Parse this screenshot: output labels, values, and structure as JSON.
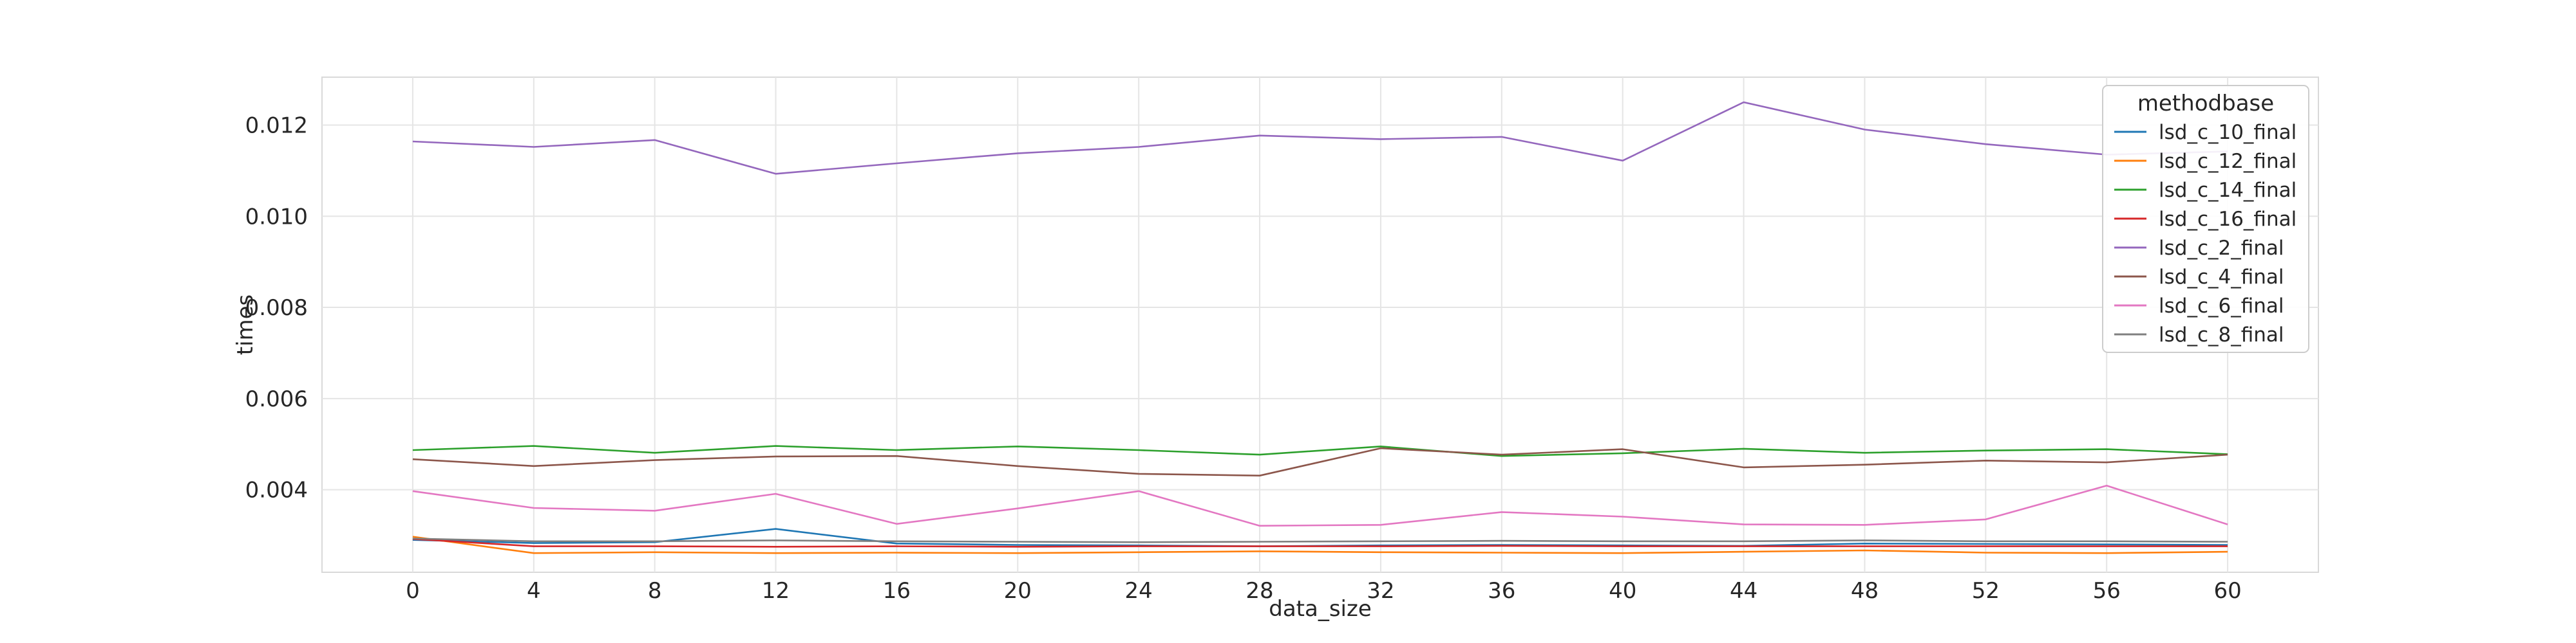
{
  "chart_data": {
    "type": "line",
    "title": "",
    "xlabel": "data_size",
    "ylabel": "times",
    "x": [
      0,
      4,
      8,
      12,
      16,
      20,
      24,
      28,
      32,
      36,
      40,
      44,
      48,
      52,
      56,
      60
    ],
    "x_tick_labels": [
      "0",
      "4",
      "8",
      "12",
      "16",
      "20",
      "24",
      "28",
      "32",
      "36",
      "40",
      "44",
      "48",
      "52",
      "56",
      "60"
    ],
    "xlim": [
      -3,
      63
    ],
    "y_ticks": [
      0.004,
      0.006,
      0.008,
      0.01,
      0.012
    ],
    "y_tick_labels": [
      "0.004",
      "0.006",
      "0.008",
      "0.010",
      "0.012"
    ],
    "ylim": [
      0.00219,
      0.01305
    ],
    "grid": true,
    "legend": {
      "title": "methodbase",
      "placement": "top-right"
    },
    "series": [
      {
        "name": "lsd_c_10_final",
        "color": "#1f77b4",
        "values": [
          0.0029,
          0.00283,
          0.00285,
          0.00314,
          0.00282,
          0.00279,
          0.00278,
          0.00276,
          0.00278,
          0.00279,
          0.00278,
          0.00277,
          0.00282,
          0.00281,
          0.0028,
          0.00279
        ]
      },
      {
        "name": "lsd_c_12_final",
        "color": "#ff7f0e",
        "values": [
          0.00297,
          0.00261,
          0.00263,
          0.00261,
          0.00262,
          0.00261,
          0.00263,
          0.00265,
          0.00263,
          0.00262,
          0.00261,
          0.00264,
          0.00267,
          0.00262,
          0.00261,
          0.00264
        ]
      },
      {
        "name": "lsd_c_14_final",
        "color": "#2ca02c",
        "values": [
          0.00487,
          0.00496,
          0.00481,
          0.00496,
          0.00487,
          0.00495,
          0.00487,
          0.00477,
          0.00495,
          0.00474,
          0.0048,
          0.0049,
          0.00481,
          0.00486,
          0.00489,
          0.00478
        ]
      },
      {
        "name": "lsd_c_16_final",
        "color": "#d62728",
        "values": [
          0.00292,
          0.00276,
          0.00276,
          0.00275,
          0.00276,
          0.00275,
          0.00276,
          0.00276,
          0.00276,
          0.00277,
          0.00276,
          0.00276,
          0.00276,
          0.00276,
          0.00276,
          0.00276
        ]
      },
      {
        "name": "lsd_c_2_final",
        "color": "#9467bd",
        "values": [
          0.01164,
          0.01152,
          0.01167,
          0.01093,
          0.01116,
          0.01138,
          0.01152,
          0.01177,
          0.01169,
          0.01174,
          0.01122,
          0.0125,
          0.0119,
          0.01158,
          0.01135,
          0.01142
        ]
      },
      {
        "name": "lsd_c_4_final",
        "color": "#8c564b",
        "values": [
          0.00467,
          0.00452,
          0.00465,
          0.00473,
          0.00474,
          0.00452,
          0.00435,
          0.00431,
          0.00491,
          0.00477,
          0.00489,
          0.00449,
          0.00455,
          0.00464,
          0.0046,
          0.00477
        ]
      },
      {
        "name": "lsd_c_6_final",
        "color": "#e377c2",
        "values": [
          0.00397,
          0.0036,
          0.00354,
          0.00391,
          0.00325,
          0.00359,
          0.00397,
          0.00321,
          0.00323,
          0.00351,
          0.00341,
          0.00324,
          0.00323,
          0.00335,
          0.00409,
          0.00324
        ]
      },
      {
        "name": "lsd_c_8_final",
        "color": "#7f7f7f",
        "values": [
          0.00293,
          0.00287,
          0.00287,
          0.00289,
          0.00287,
          0.00286,
          0.00285,
          0.00286,
          0.00287,
          0.00288,
          0.00287,
          0.00287,
          0.00289,
          0.00287,
          0.00287,
          0.00286
        ]
      }
    ]
  }
}
